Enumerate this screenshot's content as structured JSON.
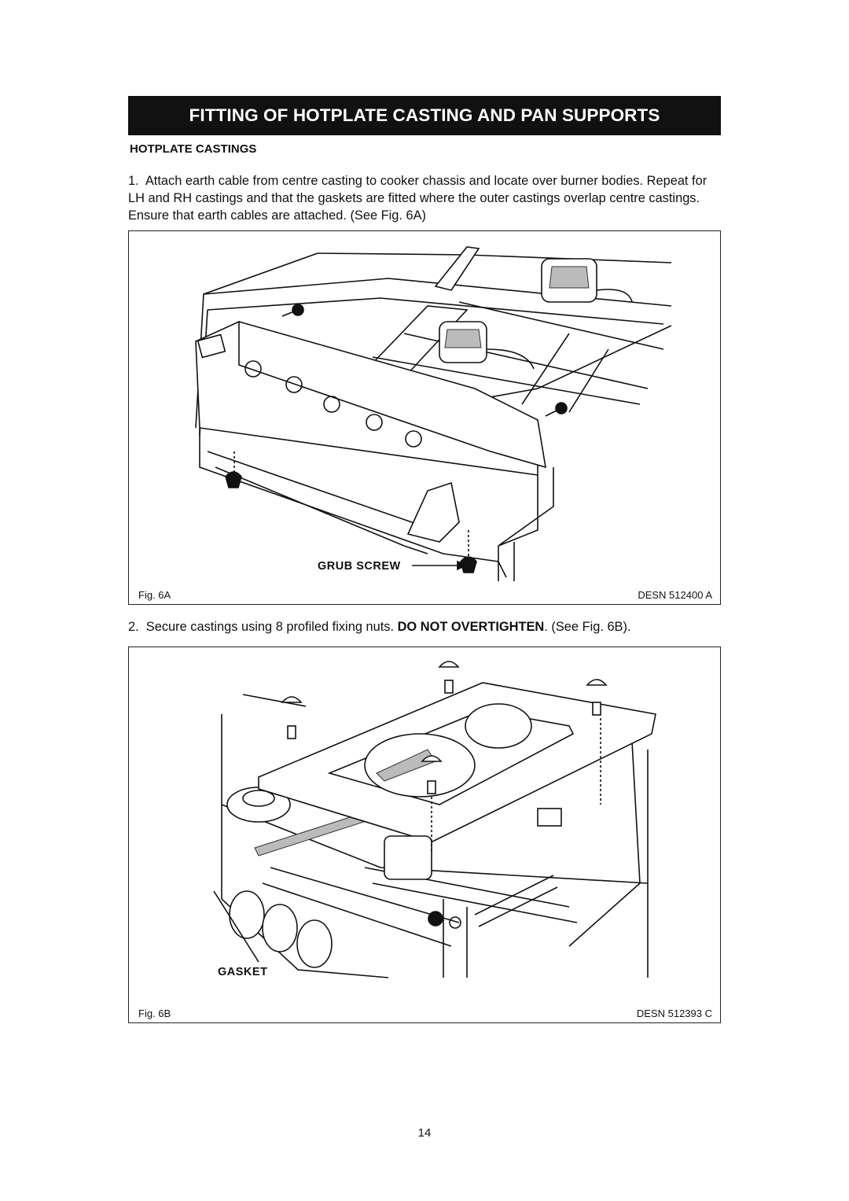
{
  "header": {
    "title": "FITTING OF HOTPLATE CASTING AND PAN SUPPORTS"
  },
  "section": {
    "heading": "HOTPLATE CASTINGS"
  },
  "steps": [
    {
      "number": "1.",
      "text": "Attach earth cable from centre casting to cooker chassis and locate over burner bodies. Repeat for LH and RH castings and that the gaskets are fitted where the outer castings overlap centre castings. Ensure that earth cables are attached. (See Fig. 6A)"
    },
    {
      "number": "2.",
      "text": "Secure castings using 8 profiled fixing nuts.",
      "emphasis": "DO NOT OVERTIGHTEN",
      "after": ". (See Fig. 6B)."
    }
  ],
  "figures": [
    {
      "caption": "Fig. 6A",
      "ref": "DESN 512400 A",
      "label": "GRUB SCREW"
    },
    {
      "caption": "Fig. 6B",
      "ref": "DESN 512393 C",
      "label": "GASKET"
    }
  ],
  "page_number": "14"
}
